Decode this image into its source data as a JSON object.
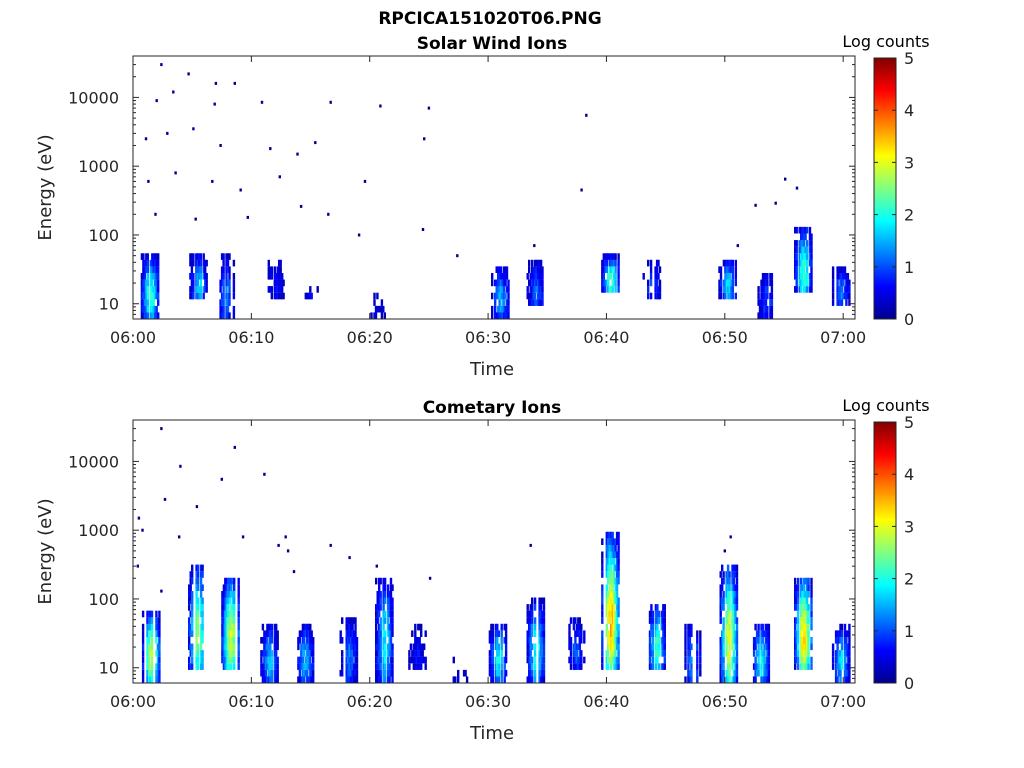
{
  "figure": {
    "title": "RPCICA151020T06.PNG"
  },
  "colormap": [
    "#00008f",
    "#0000ff",
    "#0080ff",
    "#00ffff",
    "#80ff80",
    "#ffff00",
    "#ff8000",
    "#ff0000",
    "#800000"
  ],
  "chart_data": [
    {
      "type": "heatmap",
      "title": "Solar Wind Ions",
      "xlabel": "Time",
      "ylabel": "Energy (eV)",
      "x_ticks": [
        "06:00",
        "06:10",
        "06:20",
        "06:30",
        "06:40",
        "06:50",
        "07:00"
      ],
      "x_range_minutes": [
        0,
        61
      ],
      "y_scale": "log",
      "y_ticks": [
        10,
        100,
        1000,
        10000
      ],
      "y_range": [
        6,
        40000
      ],
      "grid": false,
      "colorbar": {
        "title": "Log counts",
        "ticks": [
          0,
          1,
          2,
          3,
          4,
          5
        ],
        "range": [
          0,
          5
        ]
      },
      "clusters": [
        {
          "t": 1.4,
          "e_lo": 6,
          "e_hi": 45,
          "peak": 2.2
        },
        {
          "t": 5.5,
          "e_lo": 10,
          "e_hi": 45,
          "peak": 1.6
        },
        {
          "t": 7.8,
          "e_lo": 6,
          "e_hi": 45,
          "peak": 1.2
        },
        {
          "t": 12.0,
          "e_lo": 10,
          "e_hi": 40,
          "peak": 0.6
        },
        {
          "t": 15.0,
          "e_lo": 10,
          "e_hi": 15,
          "peak": 0.5
        },
        {
          "t": 20.8,
          "e_lo": 6,
          "e_hi": 12,
          "peak": 0.4
        },
        {
          "t": 31.0,
          "e_lo": 6,
          "e_hi": 30,
          "peak": 1.5
        },
        {
          "t": 34.0,
          "e_lo": 8,
          "e_hi": 40,
          "peak": 1.1
        },
        {
          "t": 40.3,
          "e_lo": 12,
          "e_hi": 45,
          "peak": 2.3
        },
        {
          "t": 43.8,
          "e_lo": 10,
          "e_hi": 40,
          "peak": 0.9
        },
        {
          "t": 50.2,
          "e_lo": 10,
          "e_hi": 40,
          "peak": 1.7
        },
        {
          "t": 53.5,
          "e_lo": 6,
          "e_hi": 25,
          "peak": 1.0
        },
        {
          "t": 56.6,
          "e_lo": 12,
          "e_hi": 120,
          "peak": 2.2
        },
        {
          "t": 59.8,
          "e_lo": 8,
          "e_hi": 30,
          "peak": 1.2
        }
      ],
      "sparse_points": [
        [
          2.3,
          30000
        ],
        [
          4.6,
          22000
        ],
        [
          6.9,
          16000
        ],
        [
          8.5,
          16000
        ],
        [
          1.9,
          9000
        ],
        [
          3.3,
          12000
        ],
        [
          6.8,
          8000
        ],
        [
          10.8,
          8500
        ],
        [
          16.6,
          8500
        ],
        [
          20.8,
          7500
        ],
        [
          24.9,
          7000
        ],
        [
          38.2,
          5500
        ],
        [
          1.0,
          2500
        ],
        [
          2.8,
          3000
        ],
        [
          5.0,
          3500
        ],
        [
          7.3,
          2000
        ],
        [
          11.5,
          1800
        ],
        [
          13.8,
          1500
        ],
        [
          15.3,
          2200
        ],
        [
          24.5,
          2500
        ],
        [
          1.2,
          600
        ],
        [
          3.5,
          800
        ],
        [
          6.6,
          600
        ],
        [
          9.0,
          450
        ],
        [
          12.3,
          700
        ],
        [
          19.5,
          600
        ],
        [
          37.8,
          450
        ],
        [
          1.8,
          200
        ],
        [
          5.2,
          170
        ],
        [
          9.6,
          180
        ],
        [
          14.1,
          260
        ],
        [
          16.4,
          200
        ],
        [
          19.0,
          100
        ],
        [
          24.4,
          120
        ],
        [
          27.3,
          50
        ],
        [
          33.8,
          70
        ],
        [
          51.0,
          70
        ],
        [
          52.5,
          270
        ],
        [
          54.2,
          290
        ],
        [
          55.0,
          650
        ],
        [
          56.0,
          480
        ]
      ]
    },
    {
      "type": "heatmap",
      "title": "Cometary Ions",
      "xlabel": "Time",
      "ylabel": "Energy (eV)",
      "x_ticks": [
        "06:00",
        "06:10",
        "06:20",
        "06:30",
        "06:40",
        "06:50",
        "07:00"
      ],
      "x_range_minutes": [
        0,
        61
      ],
      "y_scale": "log",
      "y_ticks": [
        10,
        100,
        1000,
        10000
      ],
      "y_range": [
        6,
        40000
      ],
      "grid": false,
      "colorbar": {
        "title": "Log counts",
        "ticks": [
          0,
          1,
          2,
          3,
          4,
          5
        ],
        "range": [
          0,
          5
        ]
      },
      "clusters": [
        {
          "t": 1.5,
          "e_lo": 6,
          "e_hi": 60,
          "peak": 2.9
        },
        {
          "t": 5.4,
          "e_lo": 8,
          "e_hi": 300,
          "peak": 2.6
        },
        {
          "t": 8.2,
          "e_lo": 8,
          "e_hi": 200,
          "peak": 2.9
        },
        {
          "t": 11.5,
          "e_lo": 6,
          "e_hi": 40,
          "peak": 1.5
        },
        {
          "t": 14.5,
          "e_lo": 6,
          "e_hi": 40,
          "peak": 1.5
        },
        {
          "t": 18.2,
          "e_lo": 6,
          "e_hi": 50,
          "peak": 1.2
        },
        {
          "t": 21.2,
          "e_lo": 6,
          "e_hi": 200,
          "peak": 1.8
        },
        {
          "t": 24.0,
          "e_lo": 8,
          "e_hi": 40,
          "peak": 0.6
        },
        {
          "t": 27.5,
          "e_lo": 6,
          "e_hi": 12,
          "peak": 0.3
        },
        {
          "t": 30.8,
          "e_lo": 6,
          "e_hi": 40,
          "peak": 1.9
        },
        {
          "t": 34.0,
          "e_lo": 6,
          "e_hi": 100,
          "peak": 2.0
        },
        {
          "t": 37.4,
          "e_lo": 8,
          "e_hi": 50,
          "peak": 1.0
        },
        {
          "t": 40.3,
          "e_lo": 8,
          "e_hi": 800,
          "peak": 3.5
        },
        {
          "t": 44.2,
          "e_lo": 8,
          "e_hi": 80,
          "peak": 2.1
        },
        {
          "t": 47.2,
          "e_lo": 6,
          "e_hi": 40,
          "peak": 1.3
        },
        {
          "t": 50.3,
          "e_lo": 6,
          "e_hi": 300,
          "peak": 3.0
        },
        {
          "t": 53.0,
          "e_lo": 6,
          "e_hi": 40,
          "peak": 2.0
        },
        {
          "t": 56.6,
          "e_lo": 8,
          "e_hi": 200,
          "peak": 3.3
        },
        {
          "t": 59.8,
          "e_lo": 6,
          "e_hi": 35,
          "peak": 1.7
        }
      ],
      "sparse_points": [
        [
          2.3,
          30000
        ],
        [
          8.5,
          16000
        ],
        [
          3.9,
          8500
        ],
        [
          7.4,
          5500
        ],
        [
          11.0,
          6500
        ],
        [
          2.6,
          2800
        ],
        [
          5.3,
          2200
        ],
        [
          0.4,
          1500
        ],
        [
          0.7,
          1000
        ],
        [
          3.8,
          800
        ],
        [
          9.2,
          800
        ],
        [
          12.8,
          800
        ],
        [
          13.0,
          500
        ],
        [
          12.2,
          600
        ],
        [
          13.5,
          250
        ],
        [
          16.6,
          600
        ],
        [
          18.2,
          400
        ],
        [
          20.5,
          300
        ],
        [
          25.0,
          200
        ],
        [
          33.5,
          600
        ],
        [
          50.4,
          800
        ],
        [
          49.9,
          500
        ],
        [
          0.3,
          300
        ],
        [
          2.3,
          130
        ],
        [
          4.7,
          100
        ]
      ]
    }
  ]
}
